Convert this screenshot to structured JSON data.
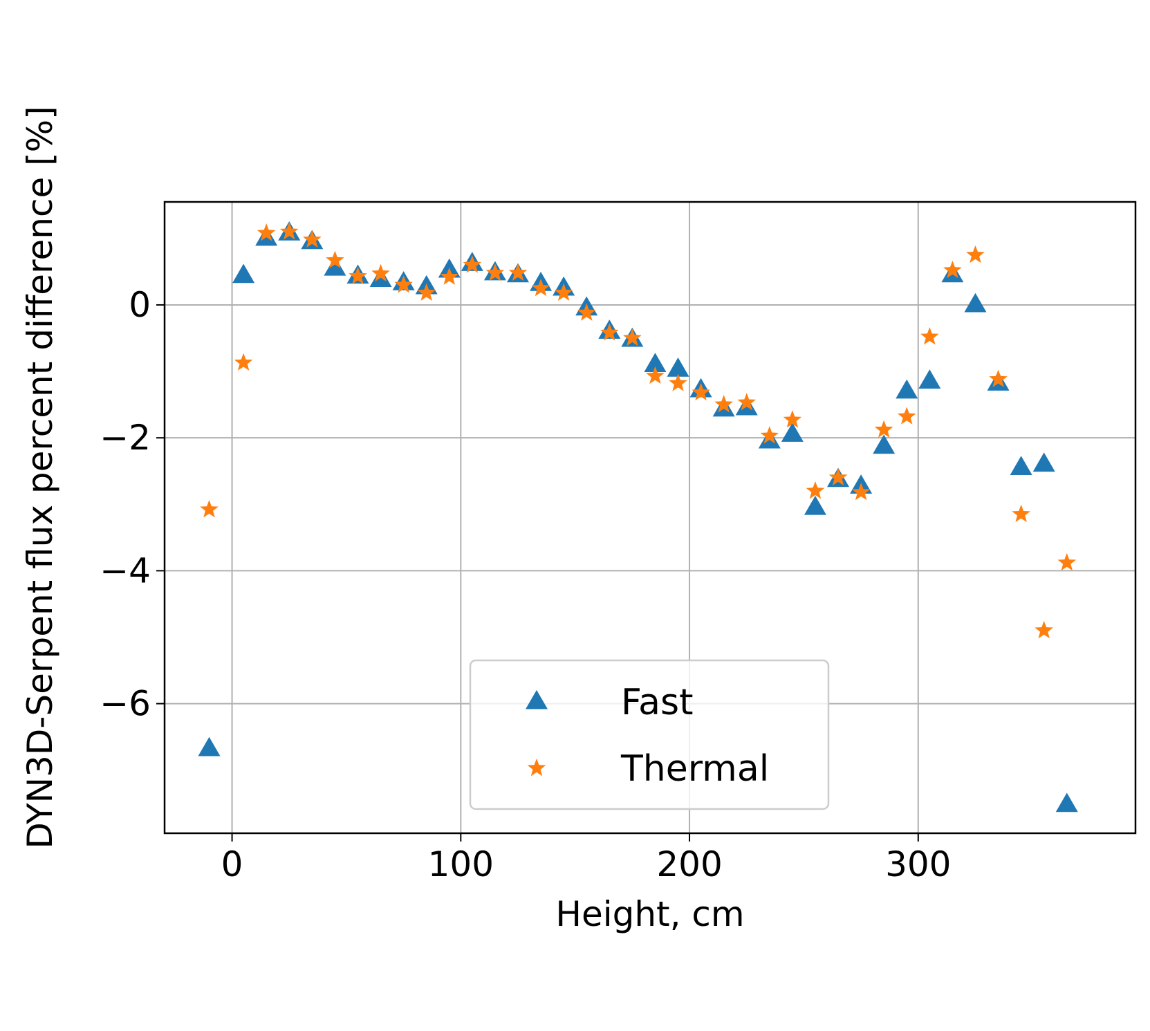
{
  "chart_data": {
    "type": "scatter",
    "xlabel": "Height, cm",
    "ylabel": "DYN3D-Serpent flux percent difference [%]",
    "xlim": [
      -29.5,
      395
    ],
    "ylim": [
      -7.95,
      1.55
    ],
    "xticks": [
      0,
      100,
      200,
      300
    ],
    "yticks": [
      0,
      -2,
      -4,
      -6
    ],
    "grid": true,
    "legend_position": "lower center",
    "series": [
      {
        "name": "Fast",
        "marker": "triangle",
        "color": "#1f77b4",
        "x": [
          -10,
          5,
          15,
          25,
          35,
          45,
          55,
          65,
          75,
          85,
          95,
          105,
          115,
          125,
          135,
          145,
          155,
          165,
          175,
          185,
          195,
          205,
          215,
          225,
          235,
          245,
          255,
          265,
          275,
          285,
          295,
          305,
          315,
          325,
          335,
          345,
          355,
          365
        ],
        "y": [
          -6.68,
          0.44,
          1.0,
          1.08,
          0.95,
          0.55,
          0.43,
          0.38,
          0.33,
          0.27,
          0.52,
          0.62,
          0.48,
          0.45,
          0.32,
          0.25,
          -0.05,
          -0.4,
          -0.52,
          -0.9,
          -0.97,
          -1.28,
          -1.57,
          -1.55,
          -2.05,
          -1.95,
          -3.05,
          -2.63,
          -2.73,
          -2.13,
          -1.3,
          -1.15,
          0.45,
          0.0,
          -1.18,
          -2.45,
          -2.4,
          -7.52
        ]
      },
      {
        "name": "Thermal",
        "marker": "star",
        "color": "#ff7f0e",
        "x": [
          -10,
          5,
          15,
          25,
          35,
          45,
          55,
          65,
          75,
          85,
          95,
          105,
          115,
          125,
          135,
          145,
          155,
          165,
          175,
          185,
          195,
          205,
          215,
          225,
          235,
          245,
          255,
          265,
          275,
          285,
          295,
          305,
          315,
          325,
          335,
          345,
          355,
          365
        ],
        "y": [
          -3.08,
          -0.87,
          1.08,
          1.1,
          0.98,
          0.67,
          0.43,
          0.47,
          0.3,
          0.18,
          0.42,
          0.6,
          0.48,
          0.48,
          0.25,
          0.18,
          -0.12,
          -0.42,
          -0.5,
          -1.07,
          -1.18,
          -1.32,
          -1.5,
          -1.47,
          -1.97,
          -1.73,
          -2.8,
          -2.6,
          -2.82,
          -1.88,
          -1.68,
          -0.48,
          0.52,
          0.75,
          -1.12,
          -3.15,
          -4.9,
          -3.88
        ]
      }
    ]
  }
}
